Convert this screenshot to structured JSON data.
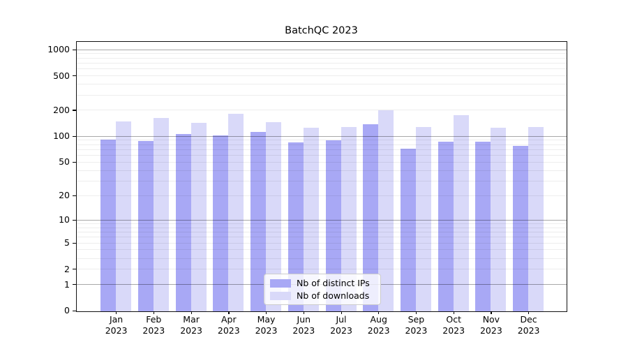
{
  "chart_data": {
    "type": "bar",
    "title": "BatchQC 2023",
    "categories": [
      "Jan 2023",
      "Feb 2023",
      "Mar 2023",
      "Apr 2023",
      "May 2023",
      "Jun 2023",
      "Jul 2023",
      "Aug 2023",
      "Sep 2023",
      "Oct 2023",
      "Nov 2023",
      "Dec 2023"
    ],
    "series": [
      {
        "name": "Nb of distinct IPs",
        "color": "#a8a8f5",
        "values": [
          93,
          89,
          107,
          103,
          113,
          86,
          90,
          138,
          73,
          87,
          87,
          78
        ]
      },
      {
        "name": "Nb of downloads",
        "color": "#d9d9f9",
        "values": [
          150,
          165,
          145,
          185,
          146,
          127,
          129,
          203,
          128,
          178,
          127,
          128
        ]
      }
    ],
    "yscale": "log1p",
    "ylim": [
      0,
      1200
    ],
    "yticks": [
      1000,
      500,
      200,
      100,
      50,
      20,
      10,
      5,
      2,
      1,
      0
    ],
    "major_grid_values": [
      1,
      10,
      100,
      1000
    ],
    "minor_grid_values": [
      2,
      3,
      4,
      5,
      6,
      7,
      8,
      9,
      20,
      30,
      40,
      50,
      60,
      70,
      80,
      90,
      200,
      300,
      400,
      500,
      600,
      700,
      800,
      900
    ],
    "grid": true,
    "legend_position": "lower-center",
    "colors": {
      "major_grid": "rgba(0,0,0,0.34)",
      "minor_grid": "rgba(0,0,0,0.07)",
      "axis": "#111111"
    }
  }
}
